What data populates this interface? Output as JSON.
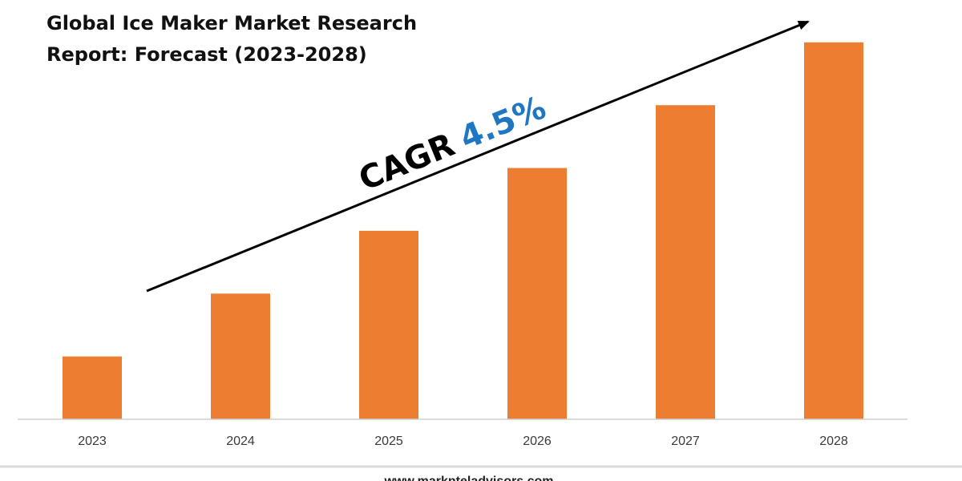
{
  "chart_data": {
    "type": "bar",
    "title_lines": [
      "Global Ice Maker Market Research",
      "Report: Forecast (2023-2028)"
    ],
    "categories": [
      "2023",
      "2024",
      "2025",
      "2026",
      "2027",
      "2028"
    ],
    "values": [
      1.0,
      2.0,
      3.0,
      4.0,
      5.0,
      6.0
    ],
    "ylim": [
      0,
      6.1
    ],
    "grid": false,
    "legend": "none",
    "annotation": {
      "prefix": "CAGR",
      "value": "4.5%"
    },
    "colors": {
      "bar": "#ed7d31",
      "cagr_value": "#1f77c4",
      "axis": "#cfcfcf"
    }
  },
  "footer": {
    "url": "www.marknteladvisors.com"
  }
}
